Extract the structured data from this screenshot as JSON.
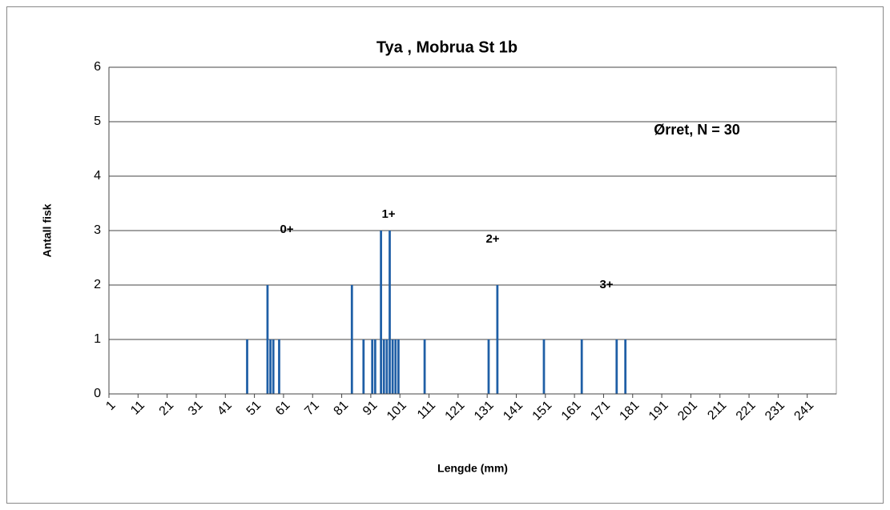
{
  "chart_data": {
    "type": "bar",
    "title": "Tya , Mobrua  St 1b",
    "x_label": "Lengde (mm)",
    "y_label": "Antall fisk",
    "annotations": [
      "Ørret, N = 30",
      "0+",
      "1+",
      "2+",
      "3+"
    ],
    "categories": [
      1,
      null,
      null,
      null,
      null,
      null,
      null,
      null,
      null,
      null,
      11,
      null,
      null,
      null,
      null,
      null,
      null,
      null,
      null,
      null,
      21,
      null,
      null,
      null,
      null,
      null,
      null,
      null,
      null,
      null,
      31,
      null,
      null,
      null,
      null,
      null,
      null,
      null,
      null,
      null,
      41,
      null,
      null,
      null,
      null,
      null,
      null,
      null,
      null,
      null,
      51,
      null,
      null,
      null,
      null,
      null,
      null,
      null,
      null,
      null,
      61,
      null,
      null,
      null,
      null,
      null,
      null,
      null,
      null,
      null,
      71,
      null,
      null,
      null,
      null,
      null,
      null,
      null,
      null,
      null,
      81,
      null,
      null,
      null,
      null,
      null,
      null,
      null,
      null,
      null,
      91,
      null,
      null,
      null,
      null,
      null,
      null,
      null,
      null,
      null,
      101,
      null,
      null,
      null,
      null,
      null,
      null,
      null,
      null,
      null,
      111,
      null,
      null,
      null,
      null,
      null,
      null,
      null,
      null,
      null,
      121,
      null,
      null,
      null,
      null,
      null,
      null,
      null,
      null,
      null,
      131,
      null,
      null,
      null,
      null,
      null,
      null,
      null,
      null,
      null,
      141,
      null,
      null,
      null,
      null,
      null,
      null,
      null,
      null,
      null,
      151,
      null,
      null,
      null,
      null,
      null,
      null,
      null,
      null,
      null,
      161,
      null,
      null,
      null,
      null,
      null,
      null,
      null,
      null,
      null,
      171,
      null,
      null,
      null,
      null,
      null,
      null,
      null,
      null,
      null,
      181,
      null,
      null,
      null,
      null,
      null,
      null,
      null,
      null,
      null,
      191,
      null,
      null,
      null,
      null,
      null,
      null,
      null,
      null,
      null,
      201,
      null,
      null,
      null,
      null,
      null,
      null,
      null,
      null,
      null,
      211,
      null,
      null,
      null,
      null,
      null,
      null,
      null,
      null,
      null,
      221,
      null,
      null,
      null,
      null,
      null,
      null,
      null,
      null,
      null,
      231,
      null,
      null,
      null,
      null,
      null,
      null,
      null,
      null,
      null,
      241,
      null,
      null,
      null,
      null,
      null,
      null,
      null,
      null,
      null
    ],
    "values": [
      0,
      0,
      0,
      0,
      0,
      0,
      0,
      0,
      0,
      0,
      0,
      0,
      0,
      0,
      0,
      0,
      0,
      0,
      0,
      0,
      0,
      0,
      0,
      0,
      0,
      0,
      0,
      0,
      0,
      0,
      0,
      0,
      0,
      0,
      0,
      0,
      0,
      0,
      0,
      0,
      0,
      0,
      0,
      0,
      0,
      0,
      0,
      1,
      0,
      0,
      0,
      0,
      0,
      0,
      2,
      1,
      1,
      0,
      1,
      0,
      0,
      0,
      0,
      0,
      0,
      0,
      0,
      0,
      0,
      0,
      0,
      0,
      0,
      0,
      0,
      0,
      0,
      0,
      0,
      0,
      0,
      0,
      0,
      2,
      0,
      0,
      0,
      1,
      0,
      0,
      1,
      1,
      0,
      3,
      1,
      1,
      3,
      1,
      1,
      1,
      0,
      0,
      0,
      0,
      0,
      0,
      0,
      0,
      1,
      0,
      0,
      0,
      0,
      0,
      0,
      0,
      0,
      0,
      0,
      0,
      0,
      0,
      0,
      0,
      0,
      0,
      0,
      0,
      0,
      0,
      1,
      0,
      0,
      2,
      0,
      0,
      0,
      0,
      0,
      0,
      0,
      0,
      0,
      0,
      0,
      0,
      0,
      0,
      0,
      1,
      0,
      0,
      0,
      0,
      0,
      0,
      0,
      0,
      0,
      0,
      0,
      0,
      1,
      0,
      0,
      0,
      0,
      0,
      0,
      0,
      0,
      0,
      0,
      0,
      1,
      0,
      0,
      1,
      0,
      0,
      0,
      0,
      0,
      0,
      0,
      0,
      0,
      0,
      0,
      0,
      0,
      0,
      0,
      0,
      0,
      0,
      0,
      0,
      0,
      0,
      0,
      0,
      0,
      0,
      0,
      0,
      0,
      0,
      0,
      0,
      0,
      0,
      0,
      0,
      0,
      0,
      0,
      0,
      0,
      0,
      0,
      0,
      0,
      0,
      0,
      0,
      0,
      0,
      0,
      0,
      0,
      0,
      0,
      0,
      0,
      0,
      0,
      0,
      0,
      0,
      0,
      0,
      0,
      0,
      0,
      0,
      0,
      0,
      0,
      0
    ],
    "color": "#1f5fa6",
    "ylim": [
      0,
      6
    ],
    "yticks": [
      0,
      1,
      2,
      3,
      4,
      5,
      6
    ],
    "grid": true
  }
}
